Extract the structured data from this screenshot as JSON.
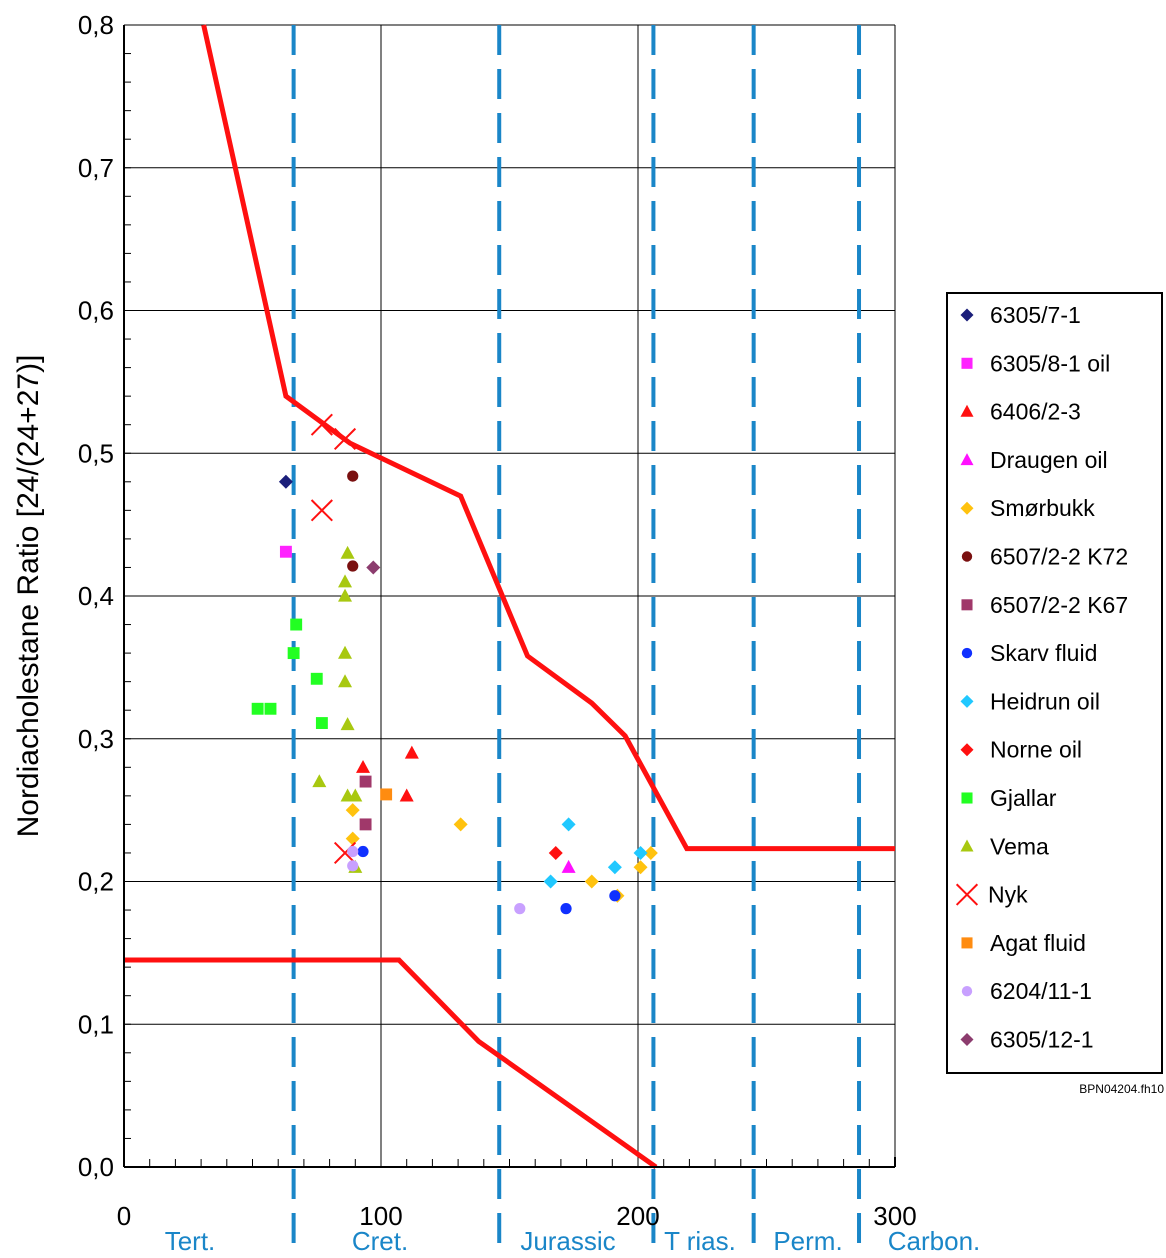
{
  "chart_data": {
    "type": "scatter",
    "title": "",
    "xlabel": "",
    "ylabel": "Nordiacholestane Ratio [24/(24+27)]",
    "xlim": [
      0,
      300
    ],
    "ylim": [
      0,
      0.8
    ],
    "x_ticks": [
      "0",
      "100",
      "200",
      "300"
    ],
    "y_ticks": [
      "0,0",
      "0,1",
      "0,2",
      "0,3",
      "0,4",
      "0,5",
      "0,6",
      "0,7",
      "0,8"
    ],
    "grid": true,
    "legend_position": "right",
    "credit": "BPN04204.fh10",
    "periods": [
      {
        "label": "Tert.",
        "start": 0,
        "end": 66
      },
      {
        "label": "Cret.",
        "start": 66,
        "end": 146
      },
      {
        "label": "Jurassic",
        "start": 146,
        "end": 206
      },
      {
        "label": "T rias.",
        "start": 206,
        "end": 245
      },
      {
        "label": "Perm.",
        "start": 245,
        "end": 286
      },
      {
        "label": "Carbon.",
        "start": 286,
        "end": 300
      }
    ],
    "boundaries": [
      66,
      146,
      206,
      245,
      286
    ],
    "envelope_upper": [
      [
        31,
        0.8
      ],
      [
        63,
        0.54
      ],
      [
        88,
        0.507
      ],
      [
        131,
        0.47
      ],
      [
        157,
        0.358
      ],
      [
        182,
        0.325
      ],
      [
        195,
        0.302
      ],
      [
        219,
        0.223
      ],
      [
        300,
        0.223
      ]
    ],
    "envelope_lower": [
      [
        0,
        0.145
      ],
      [
        107,
        0.145
      ],
      [
        138,
        0.088
      ],
      [
        207,
        0.0
      ]
    ],
    "series": [
      {
        "name": "6305/7-1",
        "marker": "diamond",
        "color": "#1b1e7a",
        "points": [
          [
            63,
            0.48
          ]
        ]
      },
      {
        "name": "6305/8-1 oil",
        "marker": "square",
        "color": "#ff22ff",
        "points": [
          [
            63,
            0.431
          ]
        ]
      },
      {
        "name": "6406/2-3",
        "marker": "triangle",
        "color": "#ff1010",
        "points": [
          [
            93,
            0.28
          ],
          [
            112,
            0.29
          ],
          [
            110,
            0.26
          ]
        ]
      },
      {
        "name": "Draugen oil",
        "marker": "triangle",
        "color": "#ff10ff",
        "points": [
          [
            173,
            0.21
          ]
        ]
      },
      {
        "name": "Smørbukk",
        "marker": "diamond",
        "color": "#ffc20e",
        "points": [
          [
            89,
            0.25
          ],
          [
            89,
            0.23
          ],
          [
            131,
            0.24
          ],
          [
            182,
            0.2
          ],
          [
            192,
            0.19
          ],
          [
            201,
            0.21
          ],
          [
            205,
            0.22
          ]
        ]
      },
      {
        "name": "6507/2-2 K72",
        "marker": "circle",
        "color": "#7a1010",
        "points": [
          [
            89,
            0.484
          ],
          [
            89,
            0.421
          ]
        ]
      },
      {
        "name": "6507/2-2 K67",
        "marker": "square",
        "color": "#a0386a",
        "points": [
          [
            94,
            0.27
          ],
          [
            94,
            0.24
          ]
        ]
      },
      {
        "name": "Skarv fluid",
        "marker": "circle",
        "color": "#1030ff",
        "points": [
          [
            93,
            0.221
          ],
          [
            172,
            0.181
          ],
          [
            191,
            0.19
          ]
        ]
      },
      {
        "name": "Heidrun oil",
        "marker": "diamond",
        "color": "#20c8ff",
        "points": [
          [
            166,
            0.2
          ],
          [
            173,
            0.24
          ],
          [
            191,
            0.21
          ],
          [
            201,
            0.22
          ]
        ]
      },
      {
        "name": "Norne oil",
        "marker": "diamond",
        "color": "#ff1010",
        "points": [
          [
            168,
            0.22
          ]
        ]
      },
      {
        "name": "Gjallar",
        "marker": "square",
        "color": "#22ff22",
        "points": [
          [
            67,
            0.38
          ],
          [
            66,
            0.36
          ],
          [
            75,
            0.342
          ],
          [
            77,
            0.311
          ],
          [
            52,
            0.321
          ],
          [
            57,
            0.321
          ]
        ]
      },
      {
        "name": "Vema",
        "marker": "triangle",
        "color": "#a8c810",
        "points": [
          [
            87,
            0.43
          ],
          [
            86,
            0.41
          ],
          [
            86,
            0.4
          ],
          [
            86,
            0.36
          ],
          [
            86,
            0.34
          ],
          [
            87,
            0.31
          ],
          [
            76,
            0.27
          ],
          [
            87,
            0.26
          ],
          [
            90,
            0.26
          ],
          [
            90,
            0.21
          ]
        ]
      },
      {
        "name": "Nyk",
        "marker": "x",
        "color": "#ff1010",
        "points": [
          [
            77,
            0.52
          ],
          [
            86,
            0.51
          ],
          [
            77,
            0.46
          ],
          [
            86,
            0.22
          ]
        ]
      },
      {
        "name": "Agat fluid",
        "marker": "square",
        "color": "#ff8c10",
        "points": [
          [
            102,
            0.261
          ]
        ]
      },
      {
        "name": "6204/11-1",
        "marker": "circle",
        "color": "#c8a0ff",
        "points": [
          [
            89,
            0.221
          ],
          [
            89,
            0.211
          ],
          [
            154,
            0.181
          ]
        ]
      },
      {
        "name": "6305/12-1",
        "marker": "diamond",
        "color": "#8c3c6e",
        "points": [
          [
            97,
            0.42
          ]
        ]
      }
    ]
  }
}
